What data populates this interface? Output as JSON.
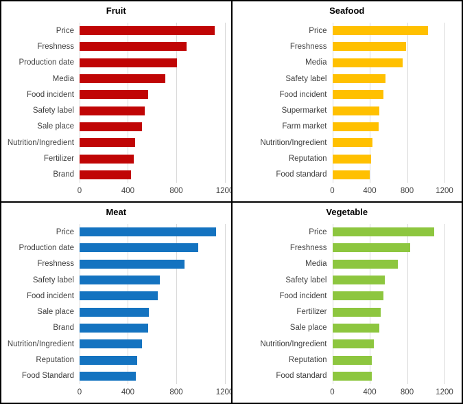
{
  "colors": {
    "panel_border": "#000000",
    "gridline": "#d9d9d9",
    "label_text": "#404040",
    "title_text": "#000000"
  },
  "chart_data": [
    {
      "type": "bar",
      "orientation": "horizontal",
      "title": "Fruit",
      "color": "#c00505",
      "categories": [
        "Price",
        "Freshness",
        "Production date",
        "Media",
        "Food incident",
        "Safety label",
        "Sale place",
        "Nutrition/Ingredient",
        "Fertilizer",
        "Brand"
      ],
      "values": [
        1120,
        885,
        805,
        710,
        570,
        540,
        515,
        460,
        450,
        425
      ],
      "xlim": [
        0,
        1200
      ],
      "xticks": [
        0,
        400,
        800,
        1200
      ],
      "grid": "vertical",
      "legend": "none"
    },
    {
      "type": "bar",
      "orientation": "horizontal",
      "title": "Seafood",
      "color": "#ffc000",
      "categories": [
        "Price",
        "Freshness",
        "Media",
        "Safety label",
        "Food incident",
        "Supermarket",
        "Farm market",
        "Nutrition/Ingredient",
        "Reputation",
        "Food standard"
      ],
      "values": [
        1025,
        790,
        755,
        570,
        545,
        505,
        495,
        430,
        415,
        400
      ],
      "xlim": [
        0,
        1200
      ],
      "xticks": [
        0,
        400,
        800,
        1200
      ],
      "grid": "vertical",
      "legend": "none"
    },
    {
      "type": "bar",
      "orientation": "horizontal",
      "title": "Meat",
      "color": "#1473c0",
      "categories": [
        "Price",
        "Production date",
        "Freshness",
        "Safety label",
        "Food incident",
        "Sale place",
        "Brand",
        "Nutrition/Ingredient",
        "Reputation",
        "Food Standard"
      ],
      "values": [
        1130,
        980,
        870,
        665,
        645,
        575,
        565,
        515,
        475,
        465
      ],
      "xlim": [
        0,
        1200
      ],
      "xticks": [
        0,
        400,
        800,
        1200
      ],
      "grid": "vertical",
      "legend": "none"
    },
    {
      "type": "bar",
      "orientation": "horizontal",
      "title": "Vegetable",
      "color": "#8dc63f",
      "categories": [
        "Price",
        "Freshness",
        "Media",
        "Safety label",
        "Food incident",
        "Fertilizer",
        "Sale place",
        "Nutrition/Ingredient",
        "Reputation",
        "Food standard"
      ],
      "values": [
        1090,
        830,
        700,
        560,
        550,
        520,
        505,
        445,
        425,
        425
      ],
      "xlim": [
        0,
        1200
      ],
      "xticks": [
        0,
        400,
        800,
        1200
      ],
      "grid": "vertical",
      "legend": "none"
    }
  ]
}
